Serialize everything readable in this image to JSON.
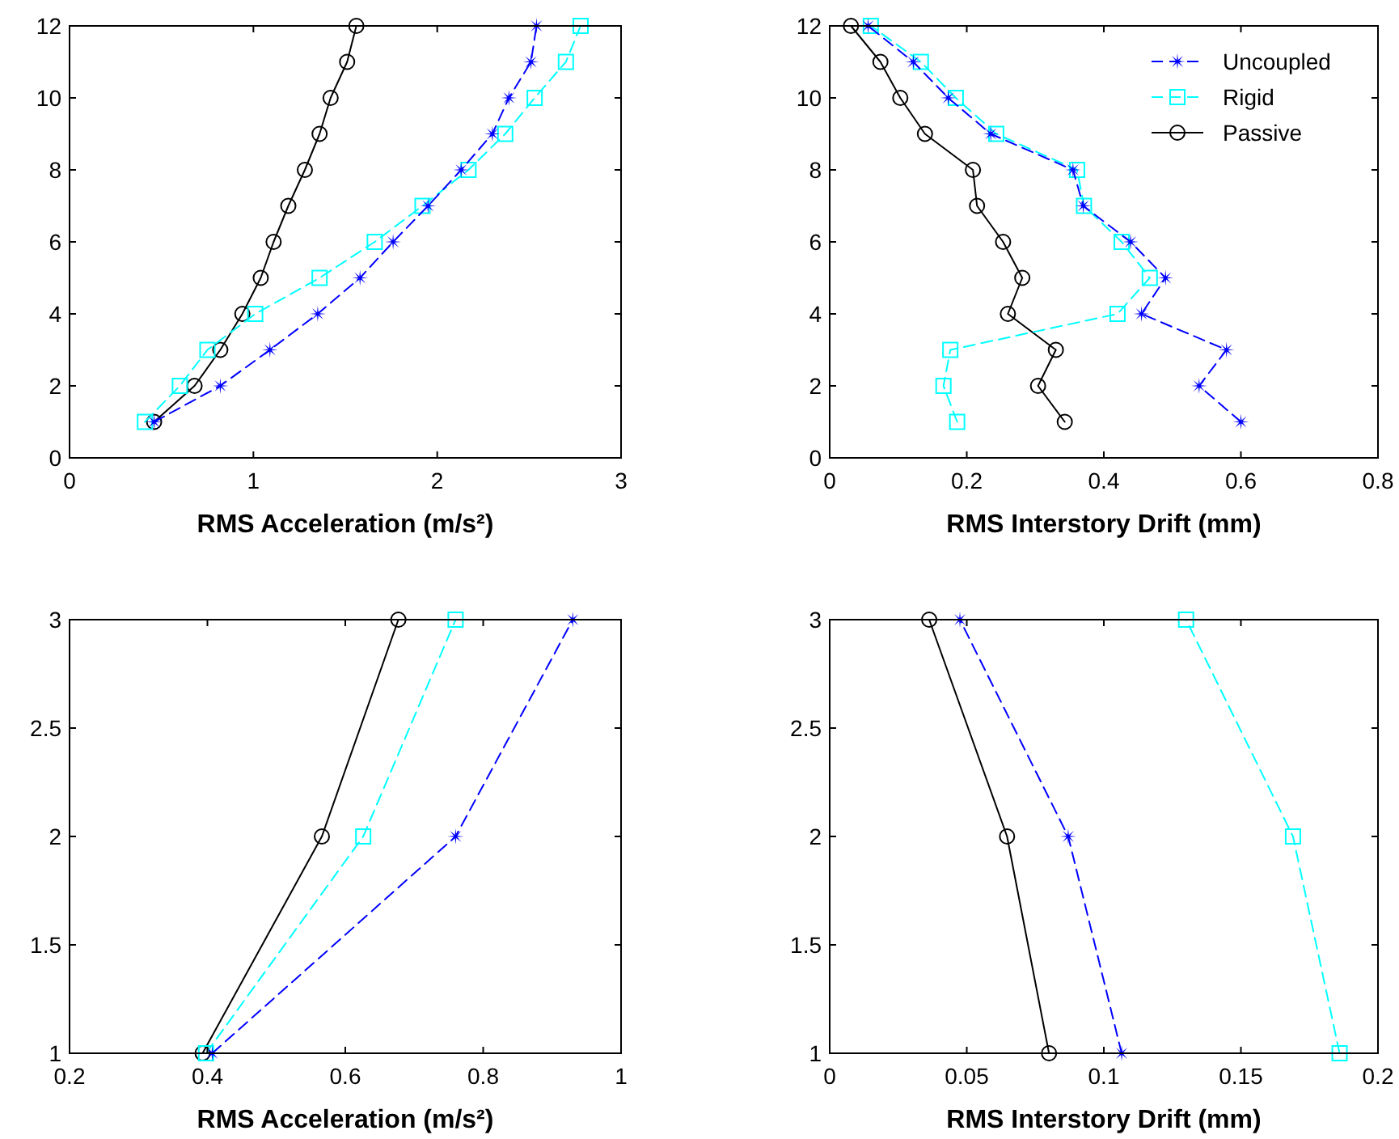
{
  "chart_data": [
    {
      "type": "line",
      "xlabel": "RMS Acceleration (m/s²)",
      "xlim": [
        0,
        3
      ],
      "xticks": [
        0,
        1,
        2,
        3
      ],
      "ylim": [
        0,
        12
      ],
      "yticks": [
        0,
        2,
        4,
        6,
        8,
        10,
        12
      ],
      "grid": false,
      "legend": false,
      "series": [
        {
          "color": "#0000ff",
          "marker": "star",
          "line_style": "dashed",
          "x": [
            0.46,
            0.82,
            1.09,
            1.35,
            1.58,
            1.76,
            1.95,
            2.13,
            2.3,
            2.39,
            2.51,
            2.54
          ],
          "values": [
            1,
            2,
            3,
            4,
            5,
            6,
            7,
            8,
            9,
            10,
            11,
            12
          ]
        },
        {
          "color": "#00ffff",
          "marker": "square",
          "line_style": "dashed",
          "x": [
            0.41,
            0.6,
            0.75,
            1.01,
            1.36,
            1.66,
            1.92,
            2.17,
            2.37,
            2.53,
            2.7,
            2.78
          ],
          "values": [
            1,
            2,
            3,
            4,
            5,
            6,
            7,
            8,
            9,
            10,
            11,
            12
          ]
        },
        {
          "color": "#000000",
          "marker": "circle",
          "line_style": "solid",
          "x": [
            0.46,
            0.68,
            0.82,
            0.94,
            1.04,
            1.11,
            1.19,
            1.28,
            1.36,
            1.42,
            1.51,
            1.56
          ],
          "values": [
            1,
            2,
            3,
            4,
            5,
            6,
            7,
            8,
            9,
            10,
            11,
            12
          ]
        }
      ]
    },
    {
      "type": "line",
      "xlabel": "RMS Interstory Drift (mm)",
      "xlim": [
        0,
        0.8
      ],
      "xticks": [
        0,
        0.2,
        0.4,
        0.6,
        0.8
      ],
      "ylim": [
        0,
        12
      ],
      "yticks": [
        0,
        2,
        4,
        6,
        8,
        10,
        12
      ],
      "grid": false,
      "legend": "top right",
      "series": [
        {
          "name": "Uncoupled",
          "color": "#0000ff",
          "marker": "star",
          "line_style": "dashed",
          "x": [
            0.6,
            0.539,
            0.579,
            0.455,
            0.49,
            0.439,
            0.37,
            0.355,
            0.235,
            0.173,
            0.122,
            0.056
          ],
          "values": [
            1,
            2,
            3,
            4,
            5,
            6,
            7,
            8,
            9,
            10,
            11,
            12
          ]
        },
        {
          "name": "Rigid",
          "color": "#00ffff",
          "marker": "square",
          "line_style": "dashed",
          "x": [
            0.186,
            0.166,
            0.176,
            0.42,
            0.467,
            0.426,
            0.371,
            0.361,
            0.243,
            0.184,
            0.133,
            0.06
          ],
          "values": [
            1,
            2,
            3,
            4,
            5,
            6,
            7,
            8,
            9,
            10,
            11,
            12
          ]
        },
        {
          "name": "Passive",
          "color": "#000000",
          "marker": "circle",
          "line_style": "solid",
          "x": [
            0.343,
            0.304,
            0.33,
            0.26,
            0.281,
            0.253,
            0.215,
            0.209,
            0.139,
            0.103,
            0.074,
            0.031
          ],
          "values": [
            1,
            2,
            3,
            4,
            5,
            6,
            7,
            8,
            9,
            10,
            11,
            12
          ]
        }
      ]
    },
    {
      "type": "line",
      "xlabel": "RMS Acceleration (m/s²)",
      "xlim": [
        0.2,
        1
      ],
      "xticks": [
        0.2,
        0.4,
        0.6,
        0.8,
        1
      ],
      "ylim": [
        1,
        3
      ],
      "yticks": [
        1,
        1.5,
        2,
        2.5,
        3
      ],
      "grid": false,
      "legend": false,
      "series": [
        {
          "color": "#0000ff",
          "marker": "star",
          "line_style": "dashed",
          "x": [
            0.407,
            0.76,
            0.93
          ],
          "values": [
            1,
            2,
            3
          ]
        },
        {
          "color": "#00ffff",
          "marker": "square",
          "line_style": "dashed",
          "x": [
            0.398,
            0.626,
            0.76
          ],
          "values": [
            1,
            2,
            3
          ]
        },
        {
          "color": "#000000",
          "marker": "circle",
          "line_style": "solid",
          "x": [
            0.393,
            0.566,
            0.677
          ],
          "values": [
            1,
            2,
            3
          ]
        }
      ]
    },
    {
      "type": "line",
      "xlabel": "RMS Interstory Drift (mm)",
      "xlim": [
        0,
        0.2
      ],
      "xticks": [
        0,
        0.05,
        0.1,
        0.15,
        0.2
      ],
      "ylim": [
        1,
        3
      ],
      "yticks": [
        1,
        1.5,
        2,
        2.5,
        3
      ],
      "grid": false,
      "legend": false,
      "series": [
        {
          "color": "#0000ff",
          "marker": "star",
          "line_style": "dashed",
          "x": [
            0.1065,
            0.087,
            0.0475
          ],
          "values": [
            1,
            2,
            3
          ]
        },
        {
          "color": "#00ffff",
          "marker": "square",
          "line_style": "dashed",
          "x": [
            0.186,
            0.169,
            0.13
          ],
          "values": [
            1,
            2,
            3
          ]
        },
        {
          "color": "#000000",
          "marker": "circle",
          "line_style": "solid",
          "x": [
            0.08,
            0.0647,
            0.0363
          ],
          "values": [
            1,
            2,
            3
          ]
        }
      ]
    }
  ]
}
